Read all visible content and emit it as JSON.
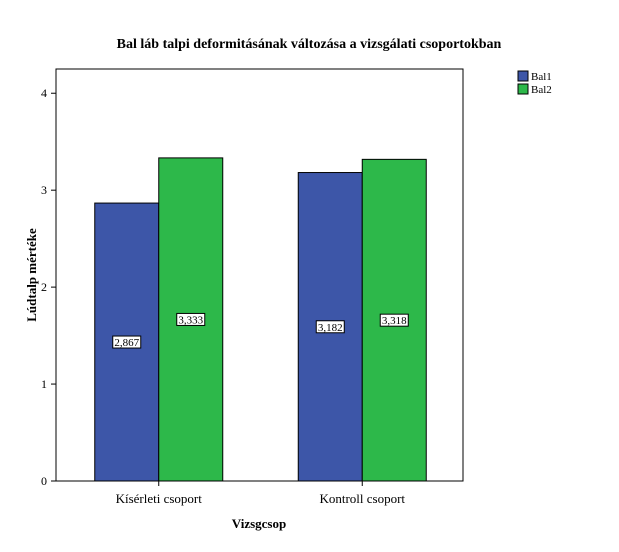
{
  "chart_data": {
    "type": "bar",
    "title": "Bal láb talpi deformitásának változása a vizsgálati csoportokban",
    "xlabel": "Vizsgcsop",
    "ylabel": "Lúdtalp mértéke",
    "categories": [
      "Kísérleti csoport",
      "Kontroll csoport"
    ],
    "series": [
      {
        "name": "Bal1",
        "color": "#3d56a8",
        "values": [
          2.867,
          3.182
        ],
        "labels": [
          "2,867",
          "3,182"
        ]
      },
      {
        "name": "Bal2",
        "color": "#2db84a",
        "values": [
          3.333,
          3.318
        ],
        "labels": [
          "3,333",
          "3,318"
        ]
      }
    ],
    "ylim": [
      0,
      4.25
    ],
    "yticks": [
      0,
      1,
      2,
      3,
      4
    ],
    "grid": false,
    "legend": "top-right, outside plot"
  }
}
